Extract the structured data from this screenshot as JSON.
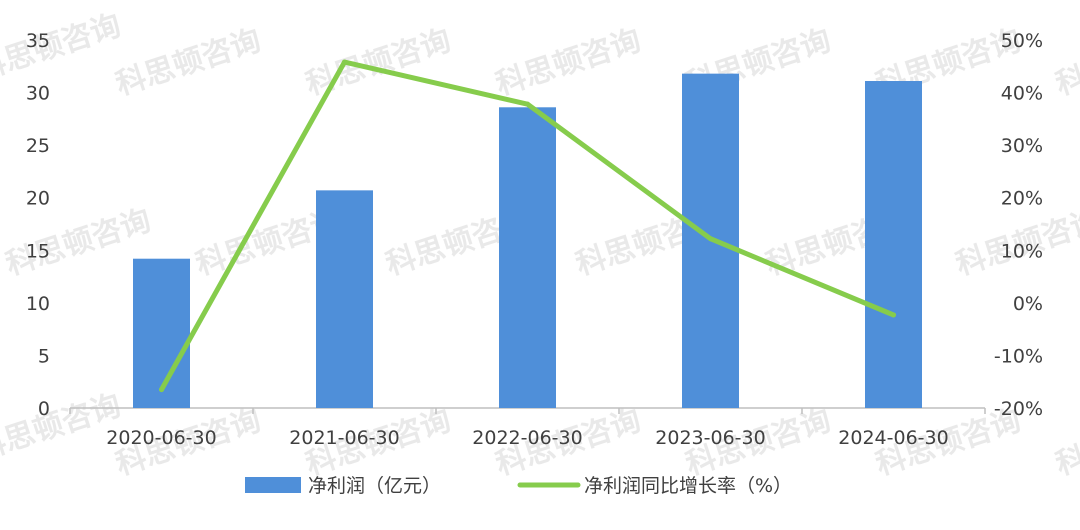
{
  "watermark": {
    "text": "科思顿咨询"
  },
  "chart_data": {
    "type": "bar",
    "categories": [
      "2020-06-30",
      "2021-06-30",
      "2022-06-30",
      "2023-06-30",
      "2024-06-30"
    ],
    "series": [
      {
        "name": "净利润（亿元）",
        "type": "bar",
        "axis": "left",
        "color": "#4f8fd9",
        "values": [
          14.2,
          20.7,
          28.6,
          31.8,
          31.1
        ]
      },
      {
        "name": "净利润同比增长率（%）",
        "type": "line",
        "axis": "right",
        "color": "#86cc4c",
        "values": [
          -16.5,
          45.8,
          37.8,
          12.2,
          -2.3
        ]
      }
    ],
    "y_left": {
      "range": [
        0,
        35
      ],
      "ticks": [
        0,
        5,
        10,
        15,
        20,
        25,
        30,
        35
      ],
      "tick_labels": [
        "0",
        "5",
        "10",
        "15",
        "20",
        "25",
        "30",
        "35"
      ]
    },
    "y_right": {
      "range": [
        -20,
        50
      ],
      "ticks": [
        -20,
        -10,
        0,
        10,
        20,
        30,
        40,
        50
      ],
      "tick_labels": [
        "-20%",
        "-10%",
        "0%",
        "10%",
        "20%",
        "30%",
        "40%",
        "50%"
      ]
    },
    "grid": false,
    "legend_position": "bottom"
  }
}
